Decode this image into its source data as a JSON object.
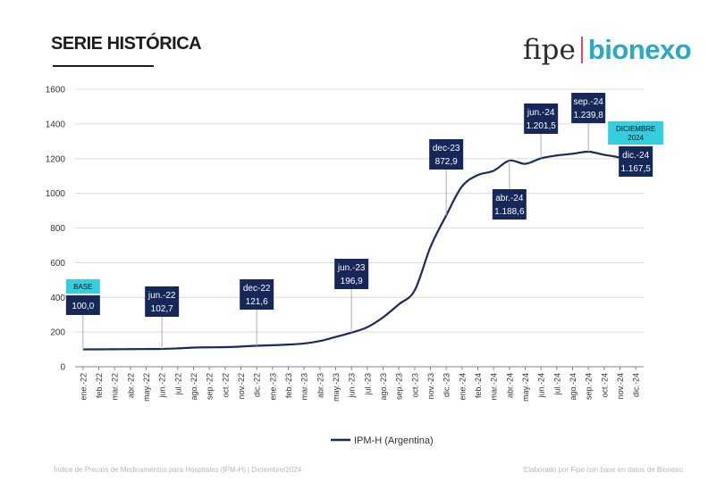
{
  "header": {
    "title": "SERIE HISTÓRICA",
    "logo_part1": "fipe",
    "logo_part2": "bionexo"
  },
  "colors": {
    "line": "#1b2a5c",
    "box": "#16275a",
    "highlight": "#33cfe0",
    "grid": "#dcdcdc"
  },
  "footer": {
    "source_left": "Índice de Precios de Medicamentos para Hospitales (IPM-H)  |  Diciembre/2024",
    "source_right": "Elaborado por Fipe con base en datos de Bionexo."
  },
  "chart_data": {
    "type": "line",
    "title": "SERIE HISTÓRICA",
    "xlabel": "",
    "ylabel": "",
    "ylim": [
      0,
      1600
    ],
    "yticks": [
      0,
      200,
      400,
      600,
      800,
      1000,
      1200,
      1400,
      1600
    ],
    "grid": true,
    "legend": "bottom-center",
    "categories": [
      "ene.-22",
      "feb.-22",
      "mar.-22",
      "abr.-22",
      "may.-22",
      "jun.-22",
      "jul.-22",
      "ago.-22",
      "sep.-22",
      "oct.-22",
      "nov.-22",
      "dic.-22",
      "ene.-23",
      "feb.-23",
      "mar.-23",
      "abr.-23",
      "may.-23",
      "jun.-23",
      "jul.-23",
      "ago.-23",
      "sep.-23",
      "oct.-23",
      "nov.-23",
      "dic.-23",
      "ene.-24",
      "feb.-24",
      "mar.-24",
      "abr.-24",
      "may.-24",
      "jun.-24",
      "jul.-24",
      "ago.-24",
      "sep.-24",
      "oct.-24",
      "nov.-24",
      "dic.-24"
    ],
    "series": [
      {
        "name": "IPM-H (Argentina)",
        "values": [
          100.0,
          100.5,
          100.8,
          101.5,
          102.1,
          102.7,
          106.0,
          110.5,
          112.0,
          113.0,
          116.5,
          121.6,
          124.0,
          128.0,
          134.0,
          148.0,
          172.0,
          196.9,
          228.0,
          285.0,
          360.0,
          440.0,
          690.0,
          872.9,
          1040.0,
          1105.0,
          1130.0,
          1188.6,
          1170.0,
          1201.5,
          1218.0,
          1228.0,
          1239.8,
          1222.0,
          1205.0,
          1167.5
        ]
      }
    ],
    "annotations": [
      {
        "index": 0,
        "label": "",
        "value": "100,0",
        "tag": "BASE"
      },
      {
        "index": 5,
        "label": "jun.-22",
        "value": "102,7"
      },
      {
        "index": 11,
        "label": "dec-22",
        "value": "121,6"
      },
      {
        "index": 17,
        "label": "jun.-23",
        "value": "196,9"
      },
      {
        "index": 23,
        "label": "dec-23",
        "value": "872,9"
      },
      {
        "index": 27,
        "label": "abr.-24",
        "value": "1.188,6"
      },
      {
        "index": 29,
        "label": "jun.-24",
        "value": "1.201,5"
      },
      {
        "index": 32,
        "label": "sep.-24",
        "value": "1.239,8"
      },
      {
        "index": 35,
        "label": "dic.-24",
        "value": "1.167,5",
        "tag": "DICIEMBRE 2024"
      }
    ]
  }
}
